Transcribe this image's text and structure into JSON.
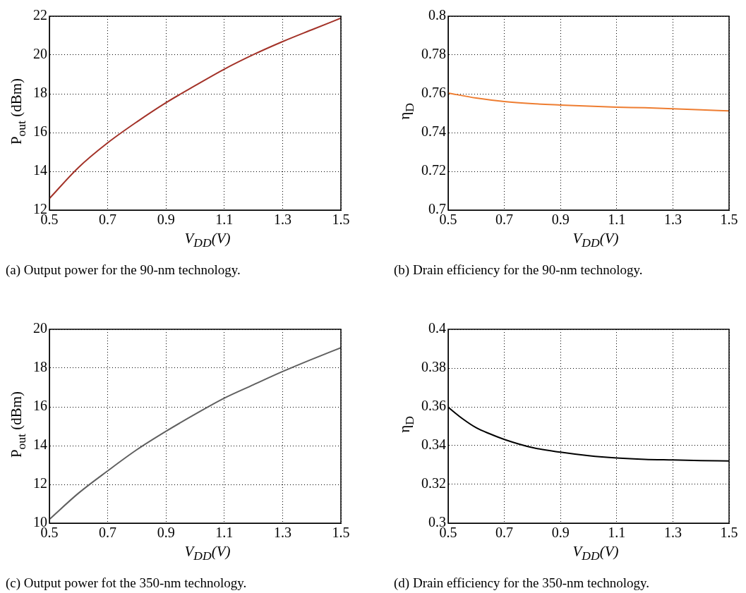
{
  "chart_data": [
    {
      "type": "line",
      "xlabel": "V$_{DD}$(V)",
      "ylabel": "P$_{out}$ (dBm)",
      "annotations": [
        "(a)  Output power for the 90-nm technology."
      ],
      "x": [
        0.5,
        0.6,
        0.7,
        0.8,
        0.9,
        1.0,
        1.1,
        1.2,
        1.3,
        1.4,
        1.5
      ],
      "series": [
        {
          "color": "#a33228",
          "values": [
            12.6,
            14.2,
            15.47,
            16.55,
            17.54,
            18.42,
            19.27,
            20.02,
            20.69,
            21.3,
            21.9
          ]
        }
      ],
      "xlim": [
        0.5,
        1.5
      ],
      "ylim": [
        12,
        22
      ],
      "xticks": [
        0.5,
        0.7,
        0.9,
        1.1,
        1.3,
        1.5
      ],
      "yticks": [
        12,
        14,
        16,
        18,
        20,
        22
      ],
      "grid": true
    },
    {
      "type": "line",
      "xlabel": "V$_{DD}$(V)",
      "ylabel": "η$_{D}$",
      "annotations": [
        "(b)  Drain efficiency for the 90-nm technology."
      ],
      "x": [
        0.5,
        0.6,
        0.7,
        0.8,
        0.9,
        1.0,
        1.1,
        1.2,
        1.3,
        1.4,
        1.5
      ],
      "series": [
        {
          "color": "#ee7d31",
          "values": [
            0.7604,
            0.7578,
            0.756,
            0.7549,
            0.7542,
            0.7536,
            0.7531,
            0.7528,
            0.7523,
            0.7517,
            0.7512
          ]
        }
      ],
      "xlim": [
        0.5,
        1.5
      ],
      "ylim": [
        0.7,
        0.8
      ],
      "xticks": [
        0.5,
        0.7,
        0.9,
        1.1,
        1.3,
        1.5
      ],
      "yticks": [
        0.7,
        0.72,
        0.74,
        0.76,
        0.78,
        0.8
      ],
      "grid": true
    },
    {
      "type": "line",
      "xlabel": "V$_{DD}$(V)",
      "ylabel": "P$_{out}$ (dBm)",
      "annotations": [
        "(c)  Output power fot the 350-nm technology."
      ],
      "x": [
        0.5,
        0.6,
        0.7,
        0.8,
        0.9,
        1.0,
        1.1,
        1.2,
        1.3,
        1.4,
        1.5
      ],
      "series": [
        {
          "color": "#606060",
          "values": [
            10.2,
            11.55,
            12.7,
            13.79,
            14.74,
            15.62,
            16.45,
            17.14,
            17.82,
            18.45,
            19.05
          ]
        }
      ],
      "xlim": [
        0.5,
        1.5
      ],
      "ylim": [
        10,
        20
      ],
      "xticks": [
        0.5,
        0.7,
        0.9,
        1.1,
        1.3,
        1.5
      ],
      "yticks": [
        10,
        12,
        14,
        16,
        18,
        20
      ],
      "grid": true
    },
    {
      "type": "line",
      "xlabel": "V$_{DD}$(V)",
      "ylabel": "η$_{D}$",
      "annotations": [
        "(d)  Drain efficiency for the 350-nm technology."
      ],
      "x": [
        0.5,
        0.55,
        0.6,
        0.65,
        0.7,
        0.8,
        0.9,
        1.0,
        1.1,
        1.2,
        1.3,
        1.4,
        1.5
      ],
      "series": [
        {
          "color": "#000000",
          "values": [
            0.3598,
            0.354,
            0.3492,
            0.346,
            0.3432,
            0.339,
            0.3366,
            0.3348,
            0.3336,
            0.3329,
            0.3326,
            0.3323,
            0.3321
          ]
        }
      ],
      "xlim": [
        0.5,
        1.5
      ],
      "ylim": [
        0.3,
        0.4
      ],
      "xticks": [
        0.5,
        0.7,
        0.9,
        1.1,
        1.3,
        1.5
      ],
      "yticks": [
        0.3,
        0.32,
        0.34,
        0.36,
        0.38,
        0.4
      ],
      "grid": true
    }
  ]
}
